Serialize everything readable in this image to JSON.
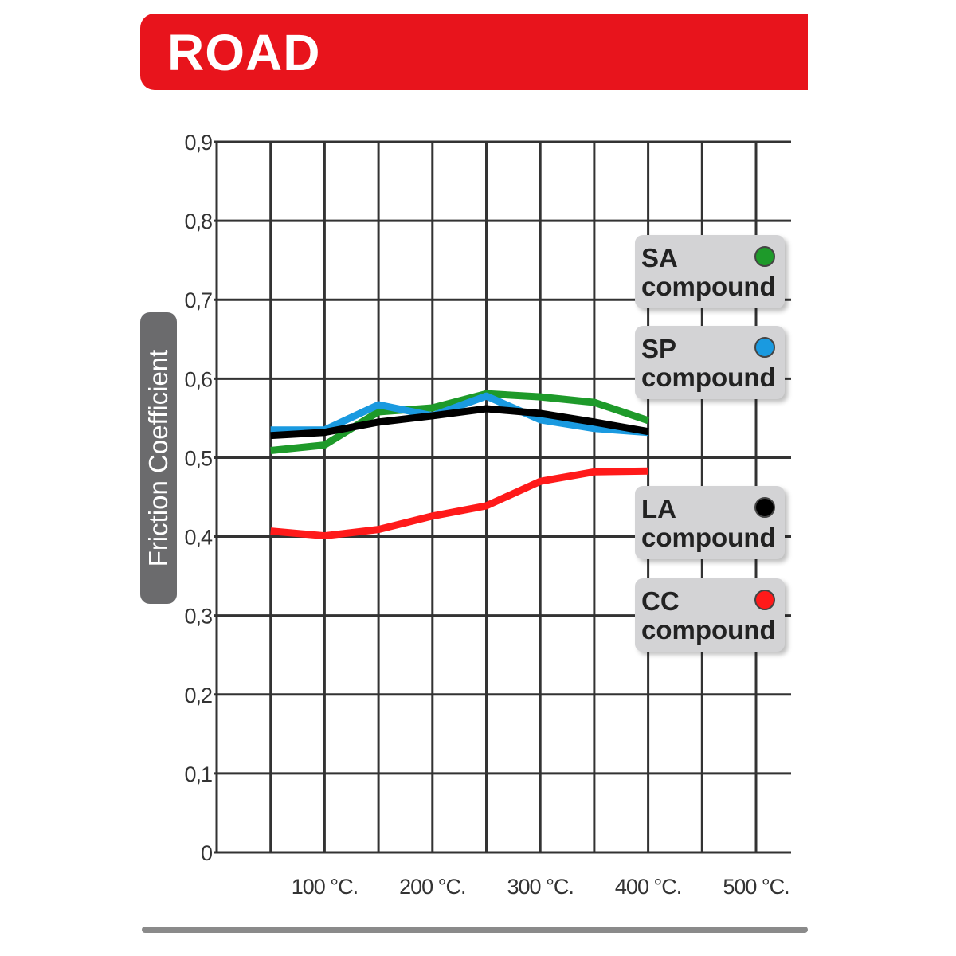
{
  "header": {
    "title": "ROAD",
    "color": "#e8141c"
  },
  "chart_data": {
    "type": "line",
    "title": "",
    "xlabel": "",
    "ylabel": "Friction Coefficient",
    "x": [
      50,
      100,
      150,
      200,
      250,
      300,
      350,
      400
    ],
    "xlim": [
      0,
      520
    ],
    "ylim": [
      0,
      0.9
    ],
    "x_ticks": [
      100,
      200,
      300,
      400,
      500
    ],
    "x_tick_labels": [
      "100 °C.",
      "200 °C.",
      "300 °C.",
      "400 °C.",
      "500 °C."
    ],
    "y_ticks": [
      0,
      0.1,
      0.2,
      0.3,
      0.4,
      0.5,
      0.6,
      0.7,
      0.8,
      0.9
    ],
    "y_tick_labels": [
      "0",
      "0,1",
      "0,2",
      "0,3",
      "0,4",
      "0,5",
      "0,6",
      "0,7",
      "0,8",
      "0,9"
    ],
    "grid": true,
    "legend_placement": "right",
    "series": [
      {
        "name": "SA compound",
        "code": "SA",
        "word": "compound",
        "color": "#1e9a2a",
        "values": [
          0.509,
          0.516,
          0.558,
          0.563,
          0.581,
          0.577,
          0.57,
          0.547
        ]
      },
      {
        "name": "SP compound",
        "code": "SP",
        "word": "compound",
        "color": "#1a9ae0",
        "values": [
          0.535,
          0.535,
          0.567,
          0.553,
          0.578,
          0.548,
          0.537,
          0.532
        ]
      },
      {
        "name": "LA compound",
        "code": "LA",
        "word": "compound",
        "color": "#000000",
        "values": [
          0.528,
          0.532,
          0.545,
          0.553,
          0.562,
          0.556,
          0.545,
          0.533
        ]
      },
      {
        "name": "CC compound",
        "code": "CC",
        "word": "compound",
        "color": "#ff1a1a",
        "values": [
          0.407,
          0.401,
          0.409,
          0.426,
          0.439,
          0.47,
          0.482,
          0.483
        ]
      }
    ]
  }
}
